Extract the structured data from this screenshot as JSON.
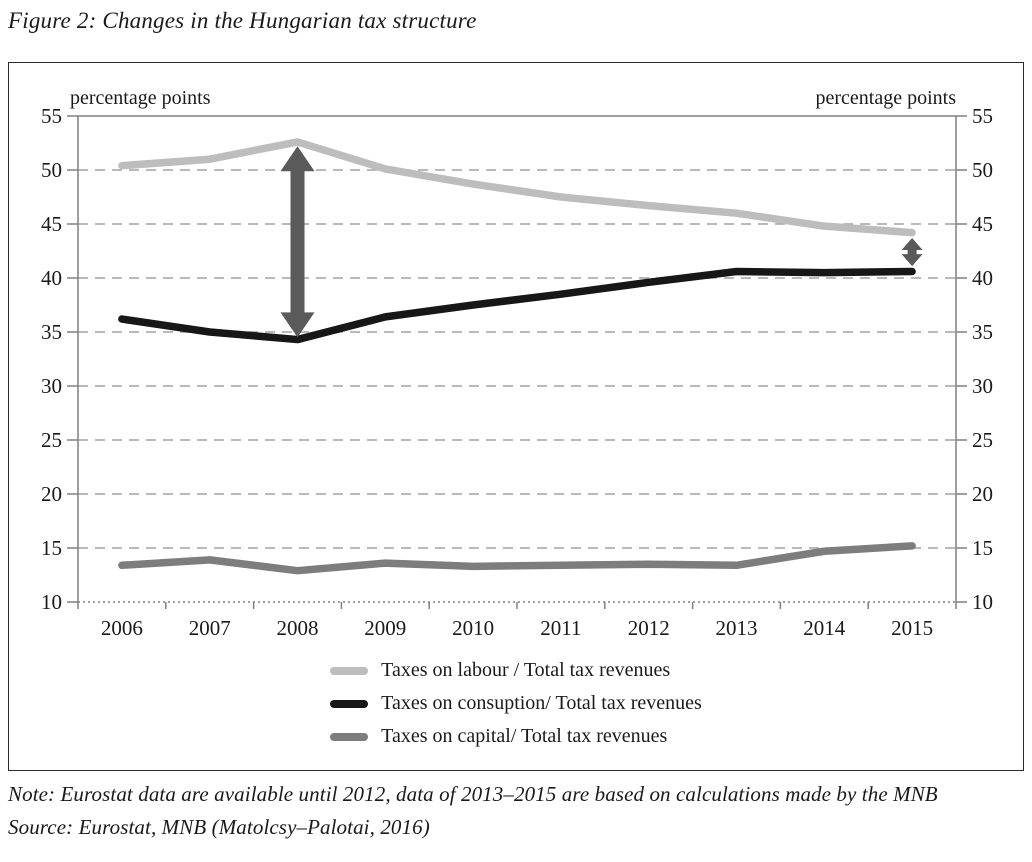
{
  "figure": {
    "title": "Figure 2: Changes in the Hungarian tax structure",
    "note": "Note: Eurostat data are available until 2012, data of 2013–2015 are based on calculations made by the MNB",
    "source": "Source: Eurostat, MNB (Matolcsy–Palotai, 2016)"
  },
  "chart_data": {
    "type": "line",
    "categories": [
      "2006",
      "2007",
      "2008",
      "2009",
      "2010",
      "2011",
      "2012",
      "2013",
      "2014",
      "2015"
    ],
    "series": [
      {
        "name": "Taxes on labour / Total tax revenues",
        "color": "#bdbdbd",
        "values": [
          50.4,
          51.0,
          52.6,
          50.1,
          48.7,
          47.5,
          46.7,
          46.0,
          44.8,
          44.2
        ]
      },
      {
        "name": "Taxes on consuption/ Total tax revenues",
        "color": "#171717",
        "values": [
          36.2,
          35.0,
          34.3,
          36.4,
          37.5,
          38.5,
          39.6,
          40.6,
          40.5,
          40.6
        ]
      },
      {
        "name": "Taxes on capital/ Total tax revenues",
        "color": "#7d7d7d",
        "values": [
          13.4,
          13.9,
          12.9,
          13.6,
          13.3,
          13.4,
          13.5,
          13.4,
          14.7,
          15.2
        ]
      }
    ],
    "ylabel_left": "percentage points",
    "ylabel_right": "percentage points",
    "ylim": [
      10,
      55
    ],
    "yticks": [
      55,
      50,
      45,
      40,
      35,
      30,
      25,
      20,
      15,
      10
    ],
    "grid": "horizontal dashed, both-side tick labels",
    "legend_position": "bottom",
    "annotations": [
      {
        "type": "double-arrow",
        "category": "2008",
        "from": 34.5,
        "to": 52.2,
        "shaft_half": 7,
        "head_half": 17,
        "head_len": 25
      },
      {
        "type": "double-arrow",
        "category": "2015",
        "from": 41.1,
        "to": 43.7,
        "shaft_half": 4.5,
        "head_half": 10.5,
        "head_len": 12
      }
    ]
  },
  "colors": {
    "text": "#1a1a1a",
    "axis": "#808080",
    "grid": "#9ba79b",
    "arrow": "#5a5a5a",
    "box_border": "#2b2b2b"
  }
}
